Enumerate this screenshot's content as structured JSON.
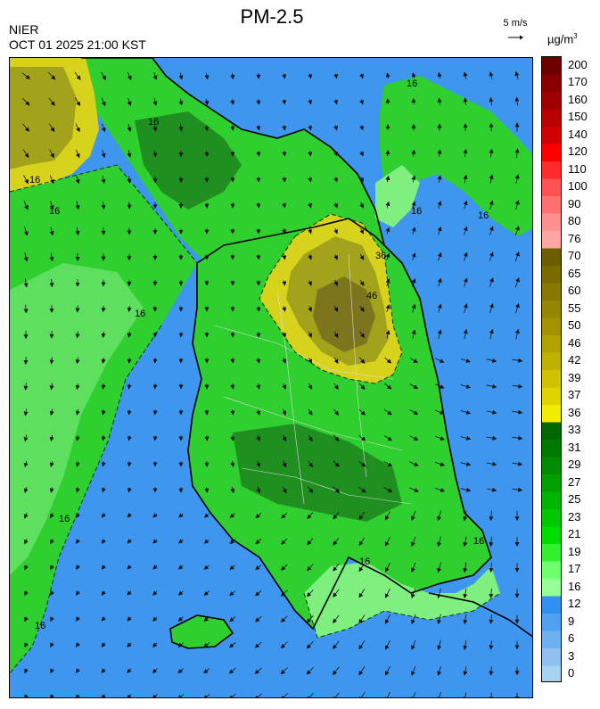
{
  "header": {
    "organization": "NIER",
    "timestamp": "OCT 01 2025 21:00 KST",
    "title": "PM-2.5",
    "wind_reference": "5 m/s",
    "unit_base": "µg/m",
    "unit_exp": "3"
  },
  "colors": {
    "ocean": "#3f96ee",
    "land_green": "#2fcf2f",
    "dark_green": "#1f8f1f",
    "light_green": "#7fef7f",
    "olive": "#a3a21b",
    "dark_olive": "#7c751d",
    "yellow": "#d7d21c"
  },
  "legend": {
    "bins": [
      {
        "label": "200",
        "color": "#6c0000"
      },
      {
        "label": "170",
        "color": "#8a0000"
      },
      {
        "label": "160",
        "color": "#a00000"
      },
      {
        "label": "150",
        "color": "#b80000"
      },
      {
        "label": "140",
        "color": "#d00000"
      },
      {
        "label": "120",
        "color": "#ff0000"
      },
      {
        "label": "110",
        "color": "#ff2b2b"
      },
      {
        "label": "100",
        "color": "#ff5252"
      },
      {
        "label": "90",
        "color": "#ff7070"
      },
      {
        "label": "80",
        "color": "#ff9090"
      },
      {
        "label": "76",
        "color": "#ffa5a5"
      },
      {
        "label": "70",
        "color": "#6b5e00"
      },
      {
        "label": "65",
        "color": "#7a6b00"
      },
      {
        "label": "60",
        "color": "#877800"
      },
      {
        "label": "55",
        "color": "#958600"
      },
      {
        "label": "50",
        "color": "#a39300"
      },
      {
        "label": "46",
        "color": "#b1a200"
      },
      {
        "label": "42",
        "color": "#c0b100"
      },
      {
        "label": "39",
        "color": "#d0c200"
      },
      {
        "label": "37",
        "color": "#e0d400"
      },
      {
        "label": "36",
        "color": "#f0ee00"
      },
      {
        "label": "33",
        "color": "#006600"
      },
      {
        "label": "31",
        "color": "#007900"
      },
      {
        "label": "29",
        "color": "#008c00"
      },
      {
        "label": "27",
        "color": "#00a000"
      },
      {
        "label": "25",
        "color": "#00b400"
      },
      {
        "label": "23",
        "color": "#00c800"
      },
      {
        "label": "21",
        "color": "#00dc00"
      },
      {
        "label": "19",
        "color": "#30f030"
      },
      {
        "label": "17",
        "color": "#6dff6d"
      },
      {
        "label": "16",
        "color": "#96ff96"
      },
      {
        "label": "12",
        "color": "#3090f0"
      },
      {
        "label": "9",
        "color": "#4fa0f0"
      },
      {
        "label": "6",
        "color": "#6fb0f0"
      },
      {
        "label": "3",
        "color": "#8fc0f0"
      },
      {
        "label": "0",
        "color": "#a8d0f0"
      }
    ]
  },
  "contour_labels": [
    "16",
    "36",
    "16",
    "16",
    "16",
    "16",
    "16",
    "16",
    "16",
    "46",
    "16",
    "16",
    "16"
  ]
}
